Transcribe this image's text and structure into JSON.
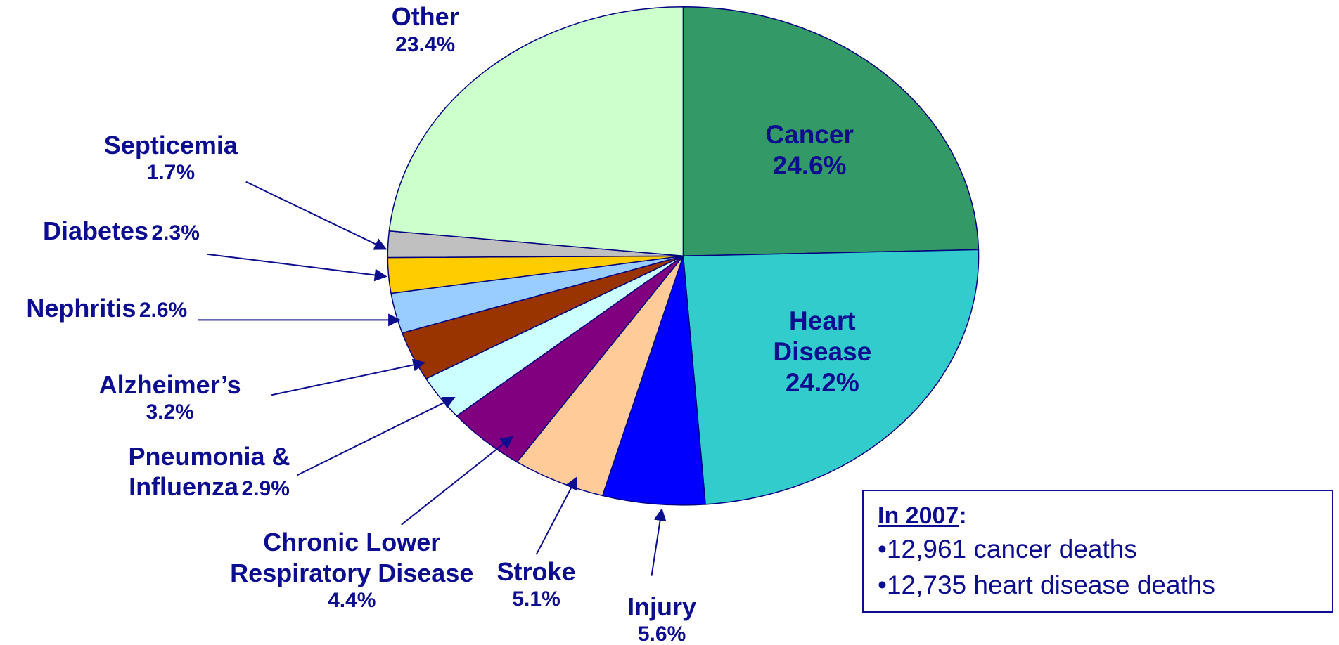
{
  "chart_data": {
    "type": "pie",
    "categories": [
      "Cancer",
      "Heart Disease",
      "Injury",
      "Stroke",
      "Chronic Lower Respiratory Disease",
      "Pneumonia & Influenza",
      "Alzheimer’s",
      "Nephritis",
      "Diabetes",
      "Septicemia",
      "Other"
    ],
    "values": [
      24.6,
      24.2,
      5.6,
      5.1,
      4.4,
      2.9,
      3.2,
      2.6,
      2.3,
      1.7,
      23.4
    ],
    "value_labels": [
      "24.6%",
      "24.2%",
      "5.6%",
      "5.1%",
      "4.4%",
      "2.9%",
      "3.2%",
      "2.6%",
      "2.3%",
      "1.7%",
      "23.4%"
    ],
    "colors": [
      "#339966",
      "#33cccc",
      "#0000ff",
      "#ffcc99",
      "#800080",
      "#ccffff",
      "#993300",
      "#99ccff",
      "#ffcc00",
      "#c0c0c0",
      "#ccffcc"
    ],
    "annotation": {
      "title": "In 2007",
      "title_suffix": ":",
      "lines": [
        "•12,961 cancer deaths",
        "•12,735 heart disease deaths"
      ]
    }
  }
}
